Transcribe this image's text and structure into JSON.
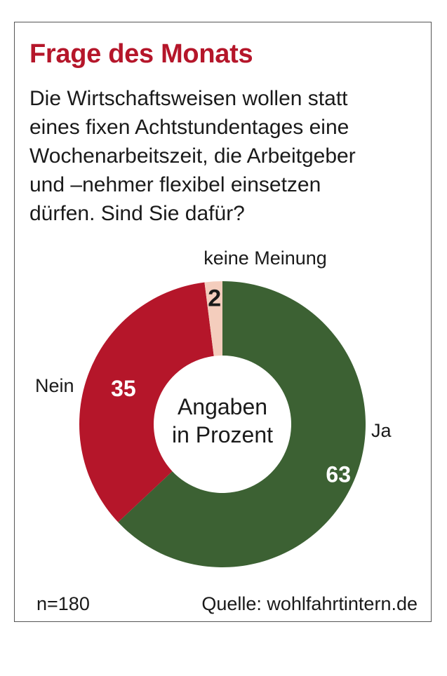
{
  "title": "Frage des Monats",
  "question_lines": [
    "Die Wirtschaftsweisen wollen statt",
    "eines fixen Achtstundentages eine",
    "Wochenarbeitszeit, die Arbeitgeber",
    "und –nehmer flexibel einsetzen",
    "dürfen. Sind Sie dafür?"
  ],
  "n_label": "n=180",
  "source": "Quelle: wohlfahrtintern.de",
  "colors": {
    "title": "#b5162a",
    "ja": "#3c6133",
    "nein": "#b5162a",
    "keine": "#f4cdbd"
  },
  "chart_data": {
    "type": "pie",
    "variant": "donut",
    "center_label": [
      "Angaben",
      "in Prozent"
    ],
    "unit": "%",
    "slices": [
      {
        "key": "ja",
        "label": "Ja",
        "value": 63,
        "color": "#3c6133"
      },
      {
        "key": "nein",
        "label": "Nein",
        "value": 35,
        "color": "#b5162a"
      },
      {
        "key": "keine",
        "label": "keine Meinung",
        "value": 2,
        "color": "#f4cdbd"
      }
    ]
  }
}
